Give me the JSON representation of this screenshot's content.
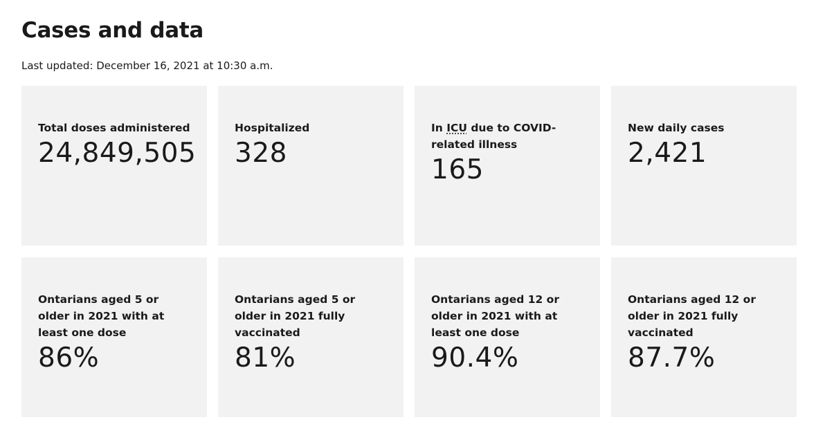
{
  "page": {
    "title": "Cases and data",
    "last_updated": "Last updated: December 16, 2021 at 10:30 a.m."
  },
  "cards": [
    {
      "label": "Total doses administered",
      "value": "24,849,505"
    },
    {
      "label": "Hospitalized",
      "value": "328"
    },
    {
      "label_prefix": "In ",
      "label_abbr": "ICU",
      "label_suffix": " due to COVID-related illness",
      "value": "165"
    },
    {
      "label": "New daily cases",
      "value": "2,421"
    },
    {
      "label": "Ontarians aged 5 or older in 2021 with at least one dose",
      "value": "86%"
    },
    {
      "label": "Ontarians aged 5 or older in 2021 fully vaccinated",
      "value": "81%"
    },
    {
      "label": "Ontarians aged 12 or older in 2021 with at least one dose",
      "value": "90.4%"
    },
    {
      "label": "Ontarians aged 12 or older in 2021 fully vaccinated",
      "value": "87.7%"
    }
  ]
}
